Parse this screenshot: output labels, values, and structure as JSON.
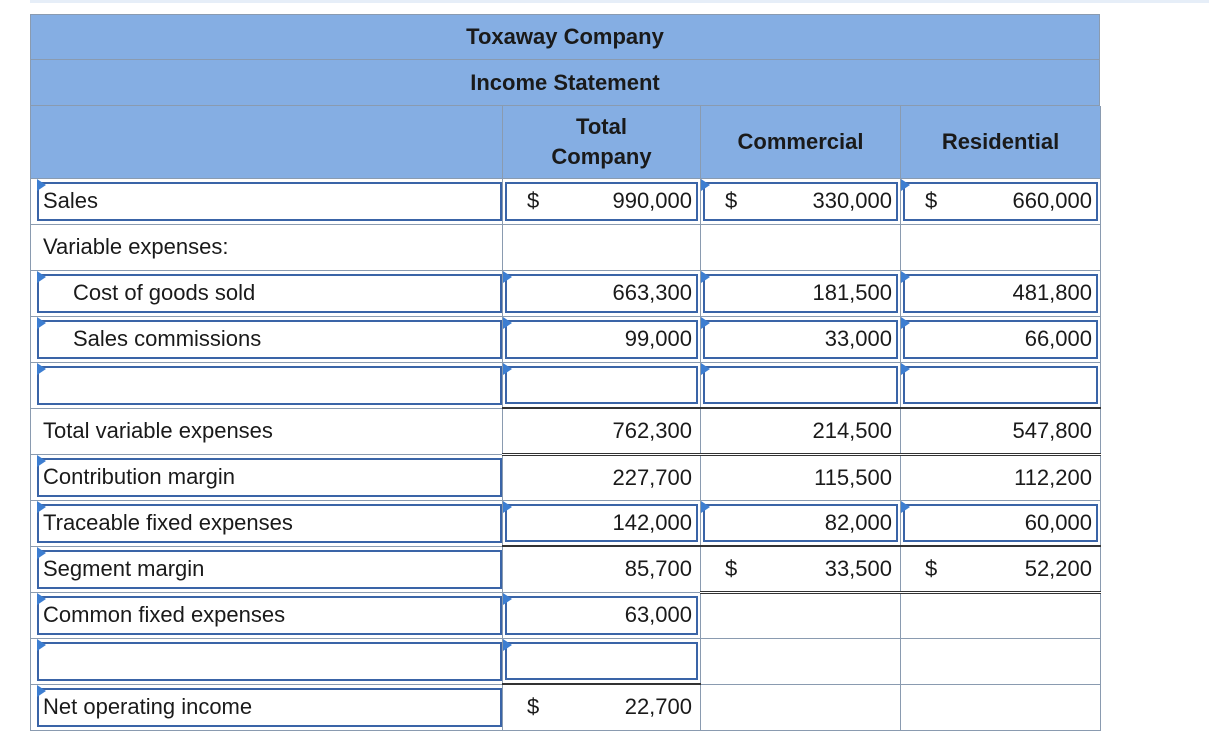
{
  "company": "Toxaway Company",
  "statement": "Income Statement",
  "columns": {
    "total": "Total Company",
    "commercial": "Commercial",
    "residential": "Residential"
  },
  "rows": {
    "sales": {
      "label": "Sales",
      "total": "990,000",
      "commercial": "330,000",
      "residential": "660,000"
    },
    "variable_header": {
      "label": "Variable expenses:"
    },
    "cogs": {
      "label": "Cost of goods sold",
      "total": "663,300",
      "commercial": "181,500",
      "residential": "481,800"
    },
    "commissions": {
      "label": "Sales commissions",
      "total": "99,000",
      "commercial": "33,000",
      "residential": "66,000"
    },
    "total_variable": {
      "label": "Total variable expenses",
      "total": "762,300",
      "commercial": "214,500",
      "residential": "547,800"
    },
    "contribution": {
      "label": "Contribution margin",
      "total": "227,700",
      "commercial": "115,500",
      "residential": "112,200"
    },
    "traceable": {
      "label": "Traceable fixed expenses",
      "total": "142,000",
      "commercial": "82,000",
      "residential": "60,000"
    },
    "segment": {
      "label": "Segment margin",
      "total": "85,700",
      "commercial": "33,500",
      "residential": "52,200"
    },
    "common": {
      "label": "Common fixed expenses",
      "total": "63,000"
    },
    "net": {
      "label": "Net operating income",
      "total": "22,700"
    }
  },
  "currency_symbol": "$",
  "colors": {
    "header_bg": "#85aee3",
    "input_border": "#3a64a7",
    "flag": "#3d7ed1"
  }
}
